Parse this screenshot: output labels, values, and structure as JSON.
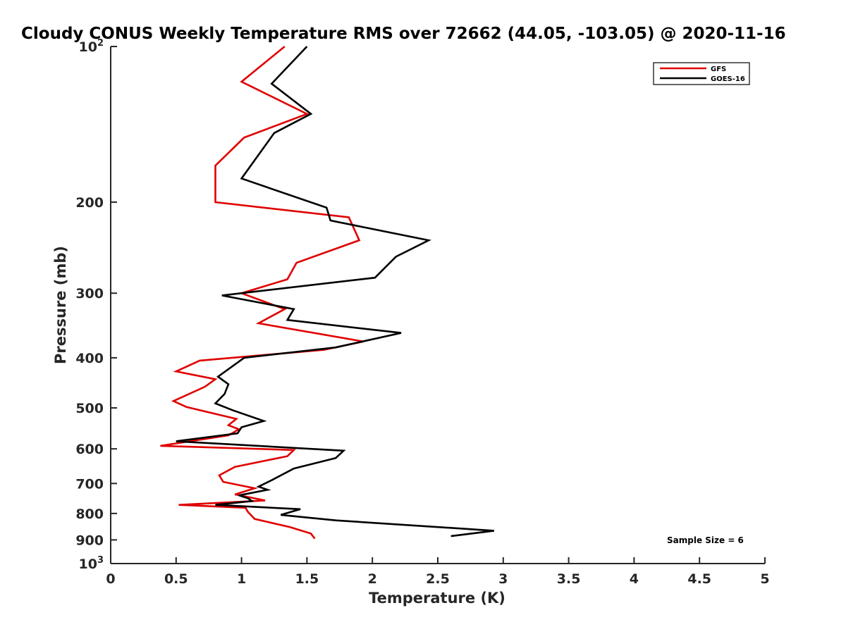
{
  "chart_data": {
    "type": "line",
    "title": "Cloudy CONUS Weekly Temperature RMS over 72662 (44.05, -103.05) @ 2020-11-16",
    "xlabel": "Temperature (K)",
    "ylabel": "Pressure (mb)",
    "xlim": [
      0,
      5
    ],
    "ylim": [
      100,
      1000
    ],
    "y_scale": "log",
    "y_reversed": true,
    "x_ticks": [
      "0",
      "0.5",
      "1",
      "1.5",
      "2",
      "2.5",
      "3",
      "3.5",
      "4",
      "4.5",
      "5"
    ],
    "y_ticks": [
      {
        "value": 100,
        "base": "10",
        "exp": "2"
      },
      {
        "value": 200,
        "label": "200"
      },
      {
        "value": 300,
        "label": "300"
      },
      {
        "value": 400,
        "label": "400"
      },
      {
        "value": 500,
        "label": "500"
      },
      {
        "value": 600,
        "label": "600"
      },
      {
        "value": 700,
        "label": "700"
      },
      {
        "value": 800,
        "label": "800"
      },
      {
        "value": 900,
        "label": "900"
      },
      {
        "value": 1000,
        "base": "10",
        "exp": "3"
      }
    ],
    "grid": false,
    "legend_position": "top-right",
    "annotation": "Sample Size = 6",
    "series": [
      {
        "name": "GFS",
        "color": "#e00000",
        "x": [
          1.33,
          1.0,
          1.5,
          1.02,
          0.8,
          0.8,
          1.82,
          1.9,
          1.42,
          1.35,
          1.0,
          1.33,
          1.13,
          1.93,
          1.63,
          0.68,
          0.5,
          0.8,
          0.72,
          0.48,
          0.58,
          0.96,
          0.9,
          0.98,
          0.9,
          0.38,
          1.4,
          1.35,
          0.95,
          0.83,
          0.86,
          1.1,
          0.95,
          1.18,
          0.52,
          1.03,
          1.05,
          1.1,
          1.37,
          1.53,
          1.56
        ],
        "y": [
          100,
          117,
          135,
          150,
          170,
          200,
          214,
          237,
          262,
          282,
          300,
          322,
          343,
          372,
          386,
          405,
          425,
          440,
          455,
          485,
          498,
          525,
          540,
          550,
          565,
          592,
          603,
          620,
          650,
          675,
          695,
          715,
          735,
          755,
          770,
          780,
          795,
          820,
          850,
          875,
          895
        ]
      },
      {
        "name": "GOES-16",
        "color": "#000000",
        "x": [
          1.5,
          1.23,
          1.53,
          1.25,
          1.0,
          1.65,
          1.68,
          2.43,
          2.18,
          2.02,
          0.85,
          1.4,
          1.35,
          2.22,
          1.72,
          1.02,
          0.82,
          0.9,
          0.87,
          0.8,
          0.93,
          1.17,
          1.0,
          0.97,
          0.5,
          1.78,
          1.72,
          1.4,
          1.23,
          1.13,
          1.2,
          0.98,
          1.05,
          1.08,
          0.8,
          1.45,
          1.3,
          1.72,
          2.93,
          2.6
        ],
        "y": [
          100,
          118,
          135,
          147,
          180,
          205,
          217,
          237,
          255,
          280,
          303,
          322,
          338,
          358,
          382,
          400,
          435,
          450,
          470,
          490,
          505,
          530,
          545,
          560,
          580,
          605,
          625,
          655,
          690,
          710,
          720,
          738,
          748,
          757,
          770,
          785,
          805,
          825,
          864,
          885
        ]
      }
    ]
  }
}
